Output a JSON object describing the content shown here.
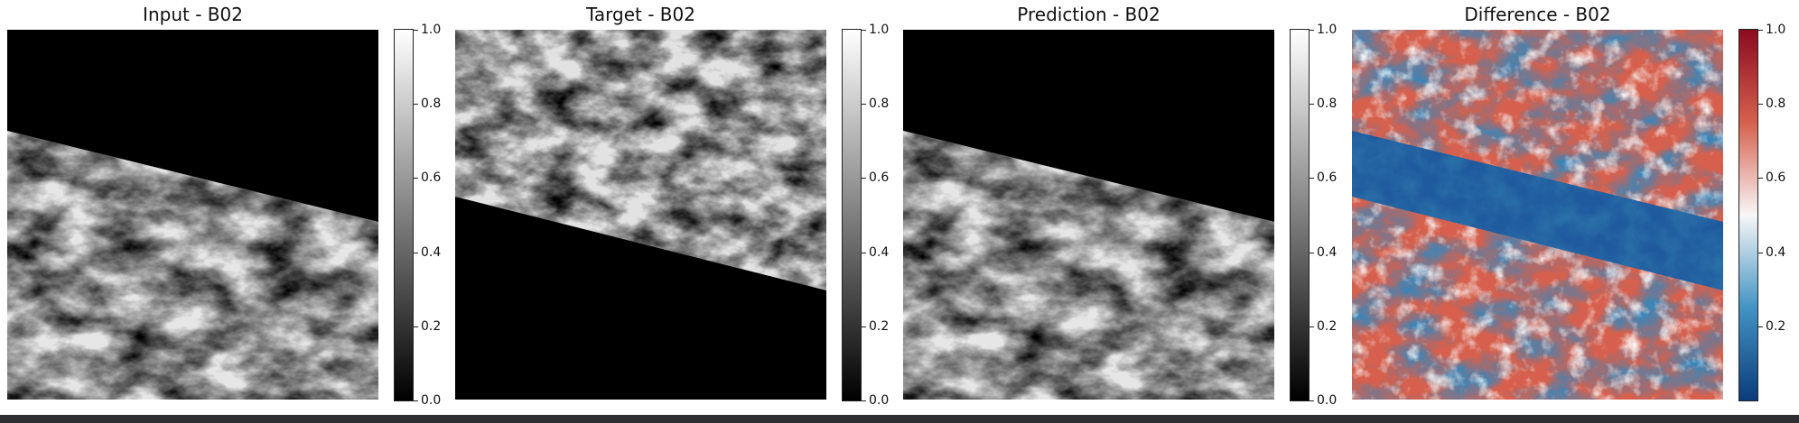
{
  "panels": [
    {
      "title": "Input - B02",
      "colormap": "gray",
      "mask": "above-band"
    },
    {
      "title": "Target - B02",
      "colormap": "gray",
      "mask": "below-band"
    },
    {
      "title": "Prediction - B02",
      "colormap": "gray",
      "mask": "above-band"
    },
    {
      "title": "Difference - B02",
      "colormap": "RdBu",
      "mask": "band-dark-blue"
    }
  ],
  "colorbar_ticks": [
    "0.0",
    "0.2",
    "0.4",
    "0.6",
    "0.8",
    "1.0"
  ],
  "colorbar_ticks_diff": [
    "0.2",
    "0.4",
    "0.6",
    "0.8",
    "1.0"
  ],
  "colors": {
    "gray_low": "#000000",
    "gray_high": "#ffffff",
    "rdbu_low": "#0b3c7a",
    "rdbu_mid": "#f7f7f7",
    "rdbu_high": "#8b0b1f"
  }
}
